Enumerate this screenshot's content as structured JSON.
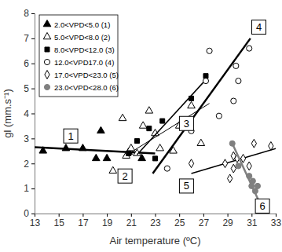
{
  "chart_data": {
    "type": "scatter",
    "x_label": "Air temperature (ºC)",
    "y_label": "gl (mm.s⁻¹)",
    "xlim": [
      13,
      33
    ],
    "xticks": [
      13,
      15,
      17,
      19,
      21,
      23,
      25,
      27,
      29,
      31,
      33
    ],
    "ylim": [
      0,
      8
    ],
    "yticks": [
      0,
      1,
      2,
      3,
      4,
      5,
      6,
      7,
      8
    ],
    "grid": false,
    "legend": "top-left",
    "series": [
      {
        "name": "2.0<VPD<5.0 (1)",
        "color": "#000000",
        "marker": "triangle",
        "x": [
          13.7,
          15.6,
          17.0,
          18.1,
          18.5,
          19.0,
          20.8,
          21.9
        ],
        "values": [
          2.5,
          2.6,
          2.6,
          2.2,
          3.3,
          2.2,
          2.45,
          2.2
        ],
        "trend": {
          "x": [
            13.0,
            23.0
          ],
          "y": [
            2.65,
            2.4
          ]
        }
      },
      {
        "name": "5.0<VPD<8.0 (2)",
        "color": "#000000",
        "marker": "triangle-open",
        "x": [
          19.5,
          20.3,
          20.6,
          21.0,
          21.5,
          22.0,
          22.5,
          23.0,
          23.4,
          24.5,
          25.0,
          26.0,
          26.8
        ],
        "values": [
          1.7,
          3.8,
          2.3,
          2.6,
          2.4,
          3.5,
          4.1,
          3.2,
          2.6,
          2.5,
          3.5,
          4.3,
          2.8
        ],
        "trend": {
          "x": [
            20.5,
            27.5
          ],
          "y": [
            2.3,
            4.4
          ]
        }
      },
      {
        "name": "8.0<VPD<12.0 (3)",
        "color": "#000000",
        "marker": "square",
        "x": [
          20.8,
          21.5,
          22.5,
          23.6,
          23.0,
          26.0,
          27.2
        ],
        "values": [
          2.4,
          2.9,
          3.4,
          3.7,
          2.2,
          4.6,
          5.5
        ],
        "trend": {
          "x": [
            21.5,
            27.3
          ],
          "y": [
            2.35,
            5.4
          ]
        }
      },
      {
        "name": "12.0<VPD17.0 (4)",
        "color": "#000000",
        "marker": "circle-open",
        "x": [
          24.0,
          26.0,
          27.2,
          27.5,
          28.3,
          29.5,
          29.7,
          29.9,
          30.8
        ],
        "values": [
          1.8,
          3.3,
          5.3,
          6.5,
          3.9,
          4.5,
          5.9,
          5.3,
          6.6
        ],
        "trend": {
          "x": [
            22.8,
            30.9
          ],
          "y": [
            1.6,
            7.0
          ]
        }
      },
      {
        "name": "17.0<VPD<23.0 (5)",
        "color": "#000000",
        "marker": "diamond-open",
        "x": [
          26.0,
          28.8,
          29.2,
          29.5,
          29.5,
          29.8,
          30.3,
          30.8,
          31.2,
          32.6
        ],
        "values": [
          2.0,
          2.0,
          1.4,
          2.3,
          1.8,
          2.2,
          2.2,
          1.9,
          2.8,
          2.7
        ],
        "trend": {
          "x": [
            26.0,
            33.0
          ],
          "y": [
            1.6,
            2.6
          ]
        }
      },
      {
        "name": "23.0<VPD<28.0 (6)",
        "color": "#808080",
        "marker": "circle",
        "x": [
          29.4,
          29.9,
          30.8,
          31.0,
          31.1,
          31.3,
          31.5
        ],
        "values": [
          2.8,
          1.9,
          1.5,
          1.1,
          1.3,
          0.9,
          1.1
        ],
        "trend": {
          "x": [
            29.3,
            31.6
          ],
          "y": [
            2.9,
            0.5
          ]
        }
      }
    ],
    "annotations": [
      {
        "text": "1",
        "x": 16.0,
        "y": 3.1
      },
      {
        "text": "2",
        "x": 20.5,
        "y": 1.5
      },
      {
        "text": "3",
        "x": 25.6,
        "y": 3.6
      },
      {
        "text": "4",
        "x": 31.6,
        "y": 7.45
      },
      {
        "text": "5",
        "x": 25.6,
        "y": 1.1
      },
      {
        "text": "6",
        "x": 31.9,
        "y": 0.3
      }
    ]
  }
}
